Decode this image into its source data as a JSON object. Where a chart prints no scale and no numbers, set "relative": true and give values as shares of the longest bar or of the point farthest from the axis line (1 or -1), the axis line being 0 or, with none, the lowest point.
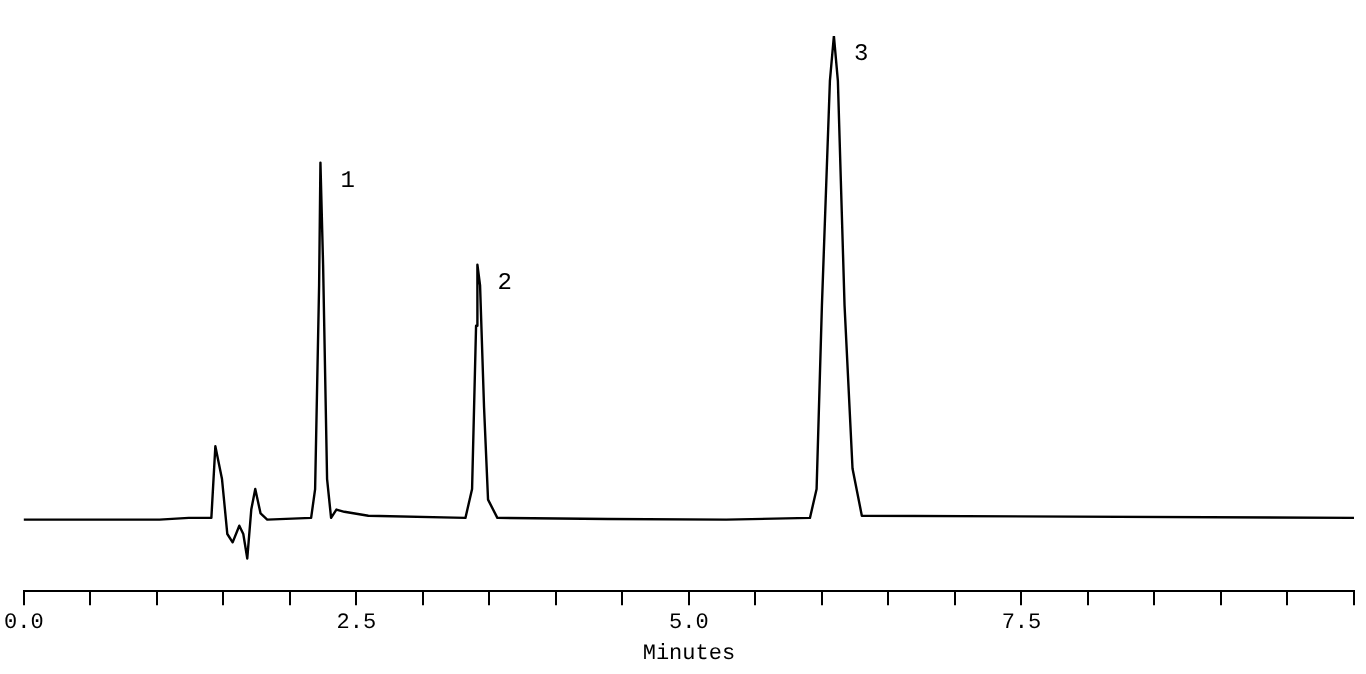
{
  "chart_data": {
    "type": "line",
    "xlabel": "Minutes",
    "relative": true,
    "marker": "none",
    "x": [
      0,
      1.02,
      1.24,
      1.41,
      1.44,
      1.49,
      1.53,
      1.57,
      1.62,
      1.65,
      1.68,
      1.71,
      1.74,
      1.78,
      1.83,
      2.16,
      2.19,
      2.22,
      2.23,
      2.25,
      2.28,
      2.31,
      2.35,
      2.41,
      2.59,
      3.32,
      3.37,
      3.4,
      3.41,
      3.43,
      3.46,
      3.49,
      3.56,
      4.39,
      5.28,
      5.91,
      5.96,
      6.0,
      6.06,
      6.09,
      6.12,
      6.17,
      6.23,
      6.3,
      10
    ],
    "series": [
      {
        "color": "#000000",
        "values": [
          0.129,
          0.129,
          0.132,
          0.132,
          0.261,
          0.202,
          0.103,
          0.088,
          0.118,
          0.103,
          0.059,
          0.147,
          0.184,
          0.14,
          0.129,
          0.132,
          0.184,
          0.551,
          0.772,
          0.588,
          0.202,
          0.132,
          0.147,
          0.143,
          0.136,
          0.132,
          0.184,
          0.478,
          0.588,
          0.551,
          0.331,
          0.165,
          0.132,
          0.13,
          0.129,
          0.132,
          0.184,
          0.515,
          0.919,
          1,
          0.919,
          0.515,
          0.221,
          0.136,
          0.132
        ]
      }
    ],
    "xlim": [
      0,
      10
    ],
    "xticks": [
      {
        "value": 0,
        "label": "0.0"
      },
      {
        "value": 0.5,
        "label": null
      },
      {
        "value": 1,
        "label": null
      },
      {
        "value": 1.5,
        "label": null
      },
      {
        "value": 2,
        "label": null
      },
      {
        "value": 2.5,
        "label": "2.5"
      },
      {
        "value": 3,
        "label": null
      },
      {
        "value": 3.5,
        "label": null
      },
      {
        "value": 4,
        "label": null
      },
      {
        "value": 4.5,
        "label": null
      },
      {
        "value": 5,
        "label": "5.0"
      },
      {
        "value": 5.5,
        "label": null
      },
      {
        "value": 6,
        "label": null
      },
      {
        "value": 6.5,
        "label": null
      },
      {
        "value": 7,
        "label": null
      },
      {
        "value": 7.5,
        "label": "7.5"
      },
      {
        "value": 8,
        "label": null
      },
      {
        "value": 8.5,
        "label": null
      },
      {
        "value": 9,
        "label": null
      },
      {
        "value": 9.5,
        "label": null
      },
      {
        "value": 10,
        "label": null
      }
    ],
    "annotations": [
      {
        "text": "1",
        "x": 2.23,
        "y": 0.772
      },
      {
        "text": "2",
        "x": 3.41,
        "y": 0.588
      },
      {
        "text": "3",
        "x": 6.09,
        "y": 1
      }
    ]
  }
}
